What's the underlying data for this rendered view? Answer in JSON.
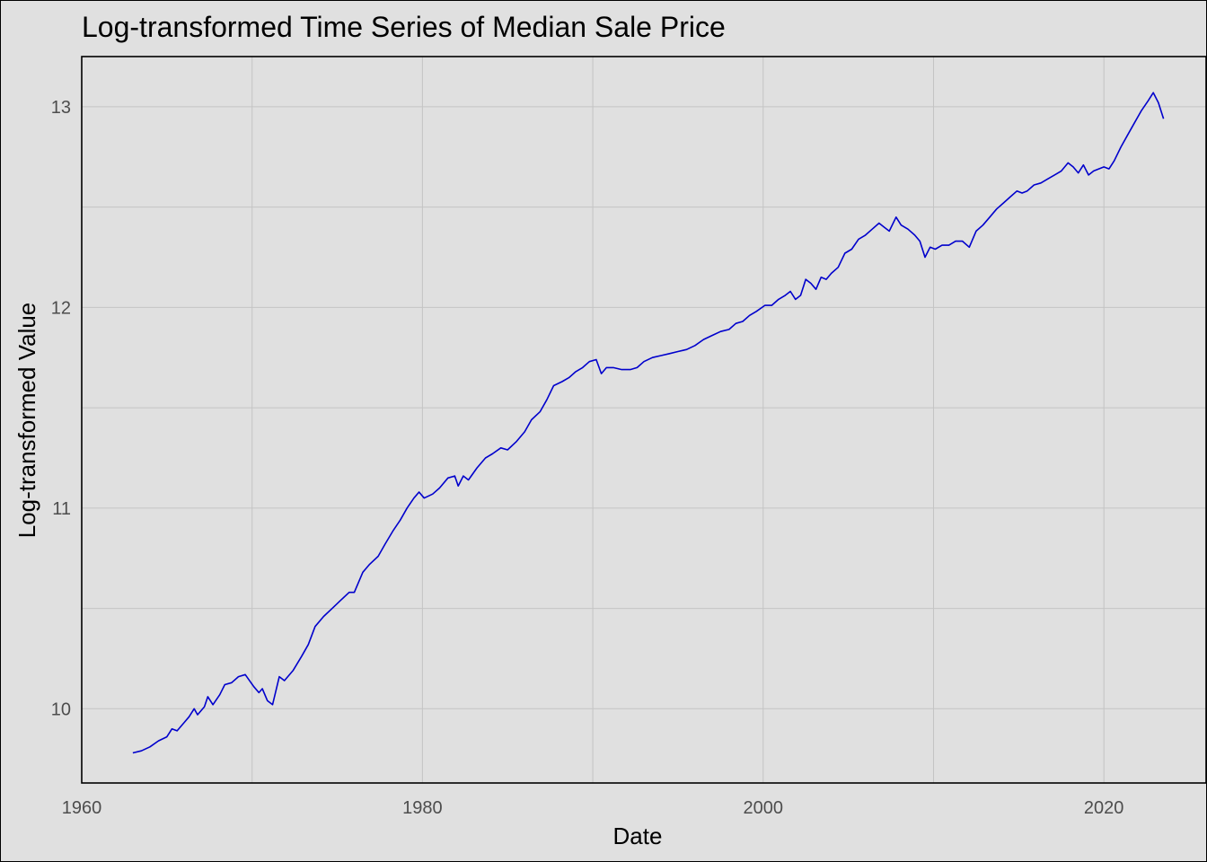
{
  "chart_data": {
    "type": "line",
    "title": "Log-transformed Time Series of Median Sale Price",
    "xlabel": "Date",
    "ylabel": "Log-transformed Value",
    "xlim": [
      1960,
      2026
    ],
    "ylim": [
      9.63,
      13.25
    ],
    "x_ticks": [
      1960,
      1980,
      2000,
      2020
    ],
    "x_minor": [
      1970,
      1990,
      2010
    ],
    "y_ticks": [
      10,
      11,
      12,
      13
    ],
    "y_minor": [
      10.5,
      11.5,
      12.5
    ],
    "grid": true,
    "line_color": "#0000cc",
    "series": [
      {
        "points": [
          [
            1963.0,
            9.78
          ],
          [
            1963.5,
            9.79
          ],
          [
            1964.0,
            9.81
          ],
          [
            1964.5,
            9.84
          ],
          [
            1965.0,
            9.86
          ],
          [
            1965.3,
            9.9
          ],
          [
            1965.6,
            9.89
          ],
          [
            1966.0,
            9.93
          ],
          [
            1966.3,
            9.96
          ],
          [
            1966.6,
            10.0
          ],
          [
            1966.8,
            9.97
          ],
          [
            1967.2,
            10.01
          ],
          [
            1967.4,
            10.06
          ],
          [
            1967.7,
            10.02
          ],
          [
            1968.1,
            10.07
          ],
          [
            1968.4,
            10.12
          ],
          [
            1968.8,
            10.13
          ],
          [
            1969.2,
            10.16
          ],
          [
            1969.6,
            10.17
          ],
          [
            1970.1,
            10.11
          ],
          [
            1970.4,
            10.08
          ],
          [
            1970.6,
            10.1
          ],
          [
            1970.9,
            10.04
          ],
          [
            1971.2,
            10.02
          ],
          [
            1971.6,
            10.16
          ],
          [
            1971.9,
            10.14
          ],
          [
            1972.4,
            10.19
          ],
          [
            1972.9,
            10.26
          ],
          [
            1973.3,
            10.32
          ],
          [
            1973.7,
            10.41
          ],
          [
            1974.2,
            10.46
          ],
          [
            1974.7,
            10.5
          ],
          [
            1975.2,
            10.54
          ],
          [
            1975.7,
            10.58
          ],
          [
            1976.0,
            10.58
          ],
          [
            1976.5,
            10.68
          ],
          [
            1976.9,
            10.72
          ],
          [
            1977.4,
            10.76
          ],
          [
            1977.8,
            10.82
          ],
          [
            1978.3,
            10.89
          ],
          [
            1978.7,
            10.94
          ],
          [
            1979.1,
            11.0
          ],
          [
            1979.5,
            11.05
          ],
          [
            1979.8,
            11.08
          ],
          [
            1980.1,
            11.05
          ],
          [
            1980.6,
            11.07
          ],
          [
            1981.0,
            11.1
          ],
          [
            1981.5,
            11.15
          ],
          [
            1981.9,
            11.16
          ],
          [
            1982.1,
            11.11
          ],
          [
            1982.4,
            11.16
          ],
          [
            1982.7,
            11.14
          ],
          [
            1983.2,
            11.2
          ],
          [
            1983.7,
            11.25
          ],
          [
            1984.1,
            11.27
          ],
          [
            1984.6,
            11.3
          ],
          [
            1985.0,
            11.29
          ],
          [
            1985.5,
            11.33
          ],
          [
            1986.0,
            11.38
          ],
          [
            1986.4,
            11.44
          ],
          [
            1986.9,
            11.48
          ],
          [
            1987.3,
            11.54
          ],
          [
            1987.7,
            11.61
          ],
          [
            1988.2,
            11.63
          ],
          [
            1988.6,
            11.65
          ],
          [
            1989.0,
            11.68
          ],
          [
            1989.4,
            11.7
          ],
          [
            1989.8,
            11.73
          ],
          [
            1990.2,
            11.74
          ],
          [
            1990.5,
            11.67
          ],
          [
            1990.8,
            11.7
          ],
          [
            1991.2,
            11.7
          ],
          [
            1991.7,
            11.69
          ],
          [
            1992.2,
            11.69
          ],
          [
            1992.6,
            11.7
          ],
          [
            1993.0,
            11.73
          ],
          [
            1993.5,
            11.75
          ],
          [
            1994.0,
            11.76
          ],
          [
            1994.5,
            11.77
          ],
          [
            1995.0,
            11.78
          ],
          [
            1995.5,
            11.79
          ],
          [
            1996.0,
            11.81
          ],
          [
            1996.5,
            11.84
          ],
          [
            1997.0,
            11.86
          ],
          [
            1997.5,
            11.88
          ],
          [
            1998.0,
            11.89
          ],
          [
            1998.4,
            11.92
          ],
          [
            1998.8,
            11.93
          ],
          [
            1999.2,
            11.96
          ],
          [
            1999.6,
            11.98
          ],
          [
            2000.1,
            12.01
          ],
          [
            2000.5,
            12.01
          ],
          [
            2000.9,
            12.04
          ],
          [
            2001.3,
            12.06
          ],
          [
            2001.6,
            12.08
          ],
          [
            2001.9,
            12.04
          ],
          [
            2002.2,
            12.06
          ],
          [
            2002.5,
            12.14
          ],
          [
            2002.8,
            12.12
          ],
          [
            2003.1,
            12.09
          ],
          [
            2003.4,
            12.15
          ],
          [
            2003.7,
            12.14
          ],
          [
            2004.0,
            12.17
          ],
          [
            2004.4,
            12.2
          ],
          [
            2004.8,
            12.27
          ],
          [
            2005.2,
            12.29
          ],
          [
            2005.6,
            12.34
          ],
          [
            2006.0,
            12.36
          ],
          [
            2006.4,
            12.39
          ],
          [
            2006.8,
            12.42
          ],
          [
            2007.1,
            12.4
          ],
          [
            2007.4,
            12.38
          ],
          [
            2007.8,
            12.45
          ],
          [
            2008.1,
            12.41
          ],
          [
            2008.5,
            12.39
          ],
          [
            2008.9,
            12.36
          ],
          [
            2009.2,
            12.33
          ],
          [
            2009.5,
            12.25
          ],
          [
            2009.8,
            12.3
          ],
          [
            2010.1,
            12.29
          ],
          [
            2010.5,
            12.31
          ],
          [
            2010.9,
            12.31
          ],
          [
            2011.3,
            12.33
          ],
          [
            2011.7,
            12.33
          ],
          [
            2012.1,
            12.3
          ],
          [
            2012.5,
            12.38
          ],
          [
            2012.9,
            12.41
          ],
          [
            2013.3,
            12.45
          ],
          [
            2013.7,
            12.49
          ],
          [
            2014.1,
            12.52
          ],
          [
            2014.5,
            12.55
          ],
          [
            2014.9,
            12.58
          ],
          [
            2015.2,
            12.57
          ],
          [
            2015.5,
            12.58
          ],
          [
            2015.9,
            12.61
          ],
          [
            2016.3,
            12.62
          ],
          [
            2016.7,
            12.64
          ],
          [
            2017.1,
            12.66
          ],
          [
            2017.5,
            12.68
          ],
          [
            2017.9,
            12.72
          ],
          [
            2018.2,
            12.7
          ],
          [
            2018.5,
            12.67
          ],
          [
            2018.8,
            12.71
          ],
          [
            2019.1,
            12.66
          ],
          [
            2019.4,
            12.68
          ],
          [
            2019.7,
            12.69
          ],
          [
            2020.0,
            12.7
          ],
          [
            2020.3,
            12.69
          ],
          [
            2020.6,
            12.73
          ],
          [
            2021.0,
            12.8
          ],
          [
            2021.4,
            12.86
          ],
          [
            2021.8,
            12.92
          ],
          [
            2022.2,
            12.98
          ],
          [
            2022.6,
            13.03
          ],
          [
            2022.9,
            13.07
          ],
          [
            2023.2,
            13.02
          ],
          [
            2023.5,
            12.94
          ]
        ]
      }
    ]
  }
}
